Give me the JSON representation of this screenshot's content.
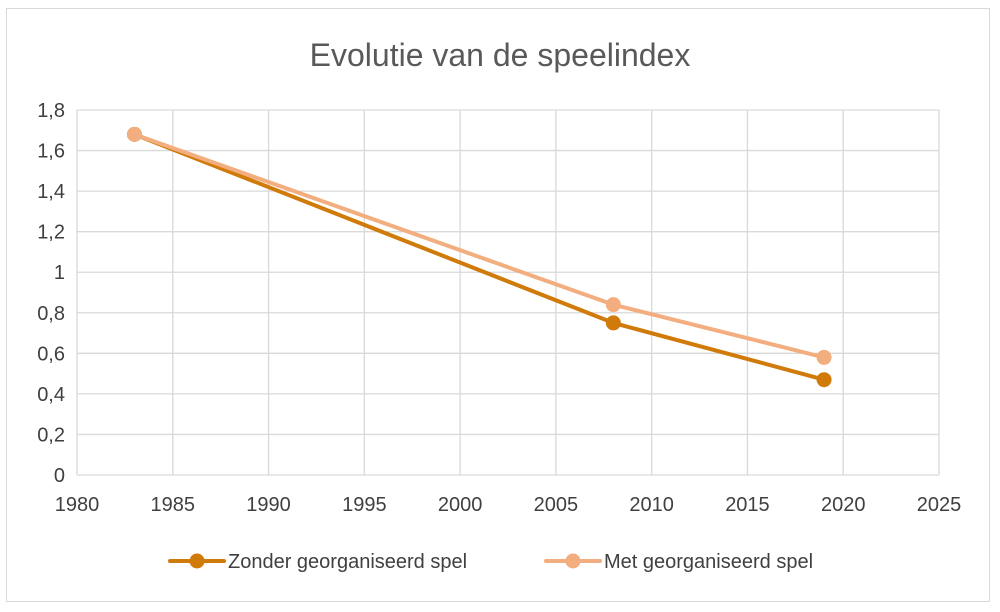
{
  "chart_data": {
    "type": "line",
    "title": "Evolutie van de speelindex",
    "xlabel": "",
    "ylabel": "",
    "xlim": [
      1980,
      2025
    ],
    "ylim": [
      0,
      1.8
    ],
    "x_ticks": [
      1980,
      1985,
      1990,
      1995,
      2000,
      2005,
      2010,
      2015,
      2020,
      2025
    ],
    "x_tick_labels": [
      "1980",
      "1985",
      "1990",
      "1995",
      "2000",
      "2005",
      "2010",
      "2015",
      "2020",
      "2025"
    ],
    "y_ticks": [
      0,
      0.2,
      0.4,
      0.6,
      0.8,
      1,
      1.2,
      1.4,
      1.6,
      1.8
    ],
    "y_tick_labels": [
      "0",
      "0,2",
      "0,4",
      "0,6",
      "0,8",
      "1",
      "1,2",
      "1,4",
      "1,6",
      "1,8"
    ],
    "grid": true,
    "legend_position": "bottom",
    "series": [
      {
        "name": "Zonder georganiseerd spel",
        "color": "#D07A0A",
        "x": [
          1983,
          2008,
          2019
        ],
        "y": [
          1.68,
          0.75,
          0.47
        ]
      },
      {
        "name": "Met georganiseerd spel",
        "color": "#F2AE7E",
        "x": [
          1983,
          2008,
          2019
        ],
        "y": [
          1.68,
          0.84,
          0.58
        ]
      }
    ]
  }
}
